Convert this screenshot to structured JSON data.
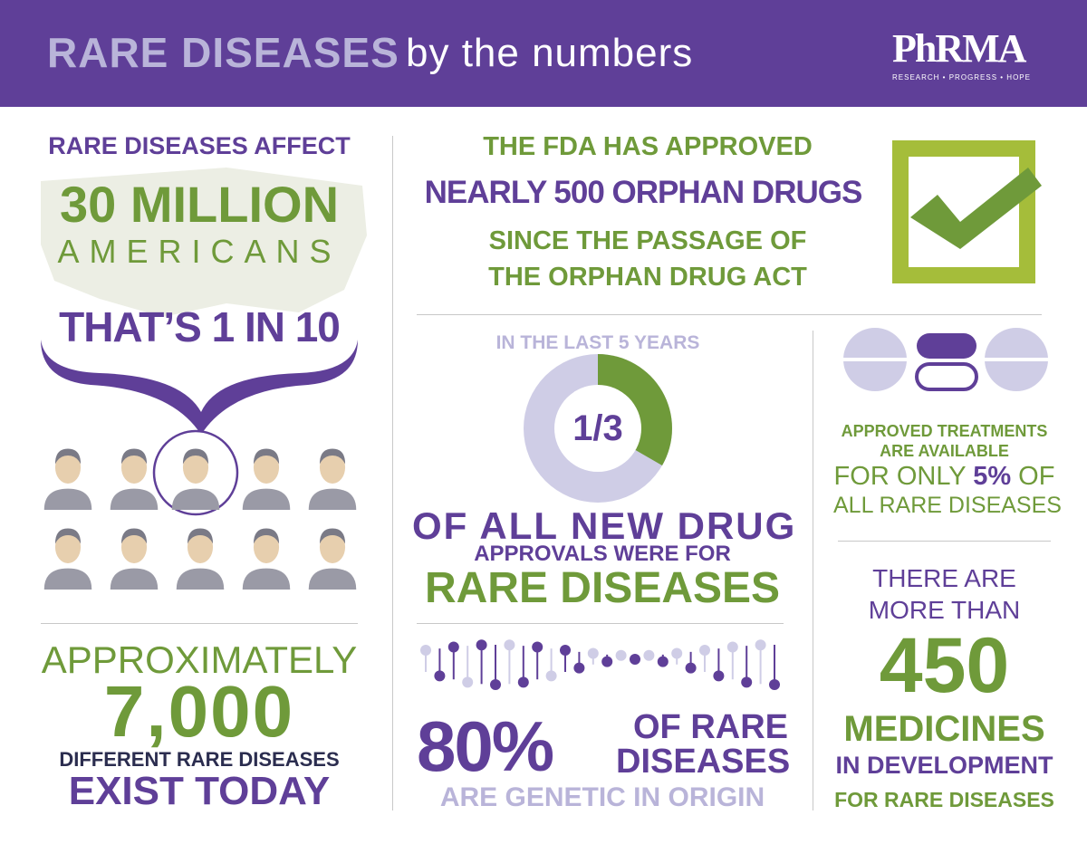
{
  "header": {
    "title_bold": "RARE DISEASES",
    "title_rest": "by the numbers",
    "logo": "PhRMA",
    "logo_tagline": "RESEARCH • PROGRESS • HOPE"
  },
  "affect": {
    "line1": "RARE DISEASES AFFECT",
    "line2": "30 MILLION",
    "line3": "AMERICANS",
    "line4": "THAT’S 1 IN 10"
  },
  "diseases": {
    "line1": "APPROXIMATELY",
    "line2": "7,000",
    "line3": "DIFFERENT RARE DISEASES",
    "line4": "EXIST TODAY"
  },
  "fda": {
    "line1": "THE FDA HAS APPROVED",
    "line2": "NEARLY 500 ORPHAN DRUGS",
    "line3": "SINCE THE PASSAGE OF",
    "line4": "THE ORPHAN DRUG ACT"
  },
  "approvals": {
    "line1": "IN THE LAST 5 YEARS",
    "fraction": "1/3",
    "line2": "OF ALL NEW DRUG",
    "line3": "APPROVALS WERE FOR",
    "line4": "RARE DISEASES"
  },
  "genetic": {
    "percent": "80%",
    "line1": "OF RARE",
    "line2": "DISEASES",
    "line3": "ARE GENETIC IN ORIGIN"
  },
  "treatments": {
    "line1": "APPROVED TREATMENTS",
    "line2": "ARE AVAILABLE",
    "line3a": "FOR ONLY",
    "line3b": "5%",
    "line3c": "OF",
    "line4": "ALL RARE DISEASES"
  },
  "medicines": {
    "line1": "THERE ARE",
    "line2": "MORE THAN",
    "line3": "450",
    "line4": "MEDICINES",
    "line5": "IN DEVELOPMENT",
    "line6": "FOR RARE DISEASES"
  }
}
